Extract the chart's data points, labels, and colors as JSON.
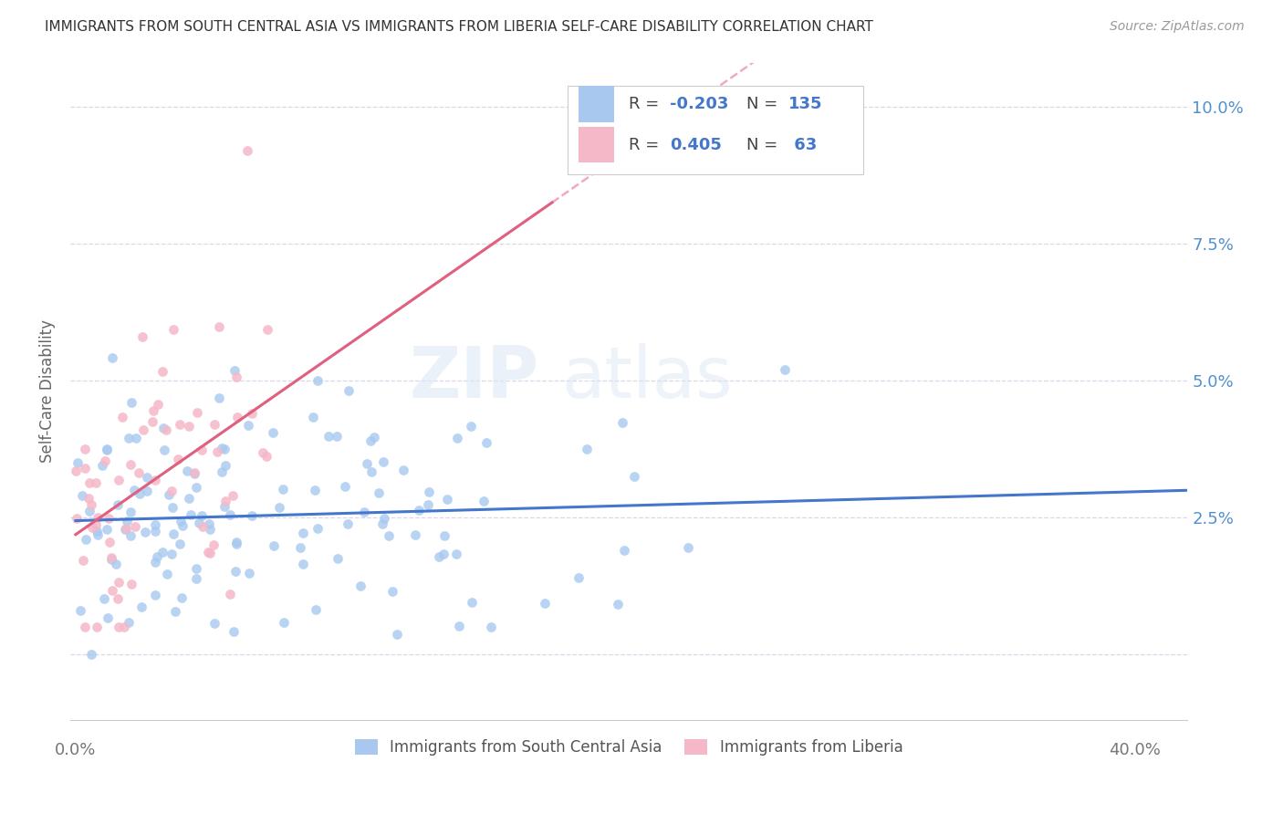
{
  "title": "IMMIGRANTS FROM SOUTH CENTRAL ASIA VS IMMIGRANTS FROM LIBERIA SELF-CARE DISABILITY CORRELATION CHART",
  "source": "Source: ZipAtlas.com",
  "ylabel": "Self-Care Disability",
  "yticks": [
    0.0,
    0.025,
    0.05,
    0.075,
    0.1
  ],
  "ytick_labels": [
    "",
    "2.5%",
    "5.0%",
    "7.5%",
    "10.0%"
  ],
  "xticks": [
    0.0,
    0.1,
    0.2,
    0.3,
    0.4
  ],
  "xlim": [
    -0.002,
    0.42
  ],
  "ylim": [
    -0.012,
    0.108
  ],
  "blue_R": -0.203,
  "blue_N": 135,
  "pink_R": 0.405,
  "pink_N": 63,
  "blue_color": "#a8c8f0",
  "pink_color": "#f5b8c8",
  "blue_line_color": "#4477cc",
  "pink_line_color": "#e06080",
  "pink_line_dashed_color": "#f0a0b8",
  "background_color": "#ffffff",
  "watermark_zip": "ZIP",
  "watermark_atlas": "atlas",
  "legend_label_blue": "Immigrants from South Central Asia",
  "legend_label_pink": "Immigrants from Liberia",
  "blue_seed": 12345,
  "pink_seed": 67890
}
